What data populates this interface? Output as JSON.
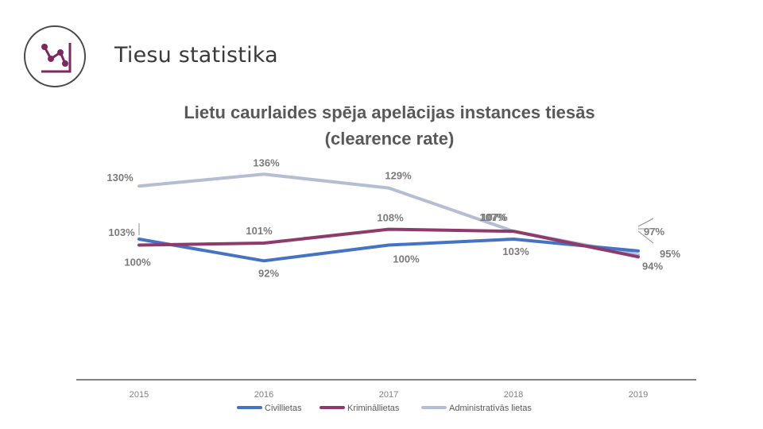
{
  "slide": {
    "title": "Tiesu statistika"
  },
  "icon": "chart-line-icon",
  "chart_data": {
    "type": "line",
    "title_lines": [
      "Lietu caurlaides spēja apelācijas instances tiesās",
      "(clearence rate)"
    ],
    "categories": [
      "2015",
      "2016",
      "2017",
      "2018",
      "2019"
    ],
    "ylim": [
      80,
      145
    ],
    "grid": false,
    "legend_position": "bottom",
    "series": [
      {
        "name": "Civillietas",
        "color": "#4472c4",
        "values": [
          103,
          92,
          100,
          103,
          97
        ],
        "labels": [
          "103%",
          "92%",
          "100%",
          "103%",
          "97%"
        ]
      },
      {
        "name": "Krimināllietas",
        "color": "#8e3a6b",
        "values": [
          100,
          101,
          108,
          107,
          94
        ],
        "labels": [
          "100%",
          "101%",
          "108%",
          "107%",
          "94%"
        ]
      },
      {
        "name": "Administratīvās lietas",
        "color": "#b4bed2",
        "values": [
          130,
          136,
          129,
          107,
          95
        ],
        "labels": [
          "130%",
          "136%",
          "129%",
          "107%",
          "95%"
        ]
      }
    ]
  }
}
